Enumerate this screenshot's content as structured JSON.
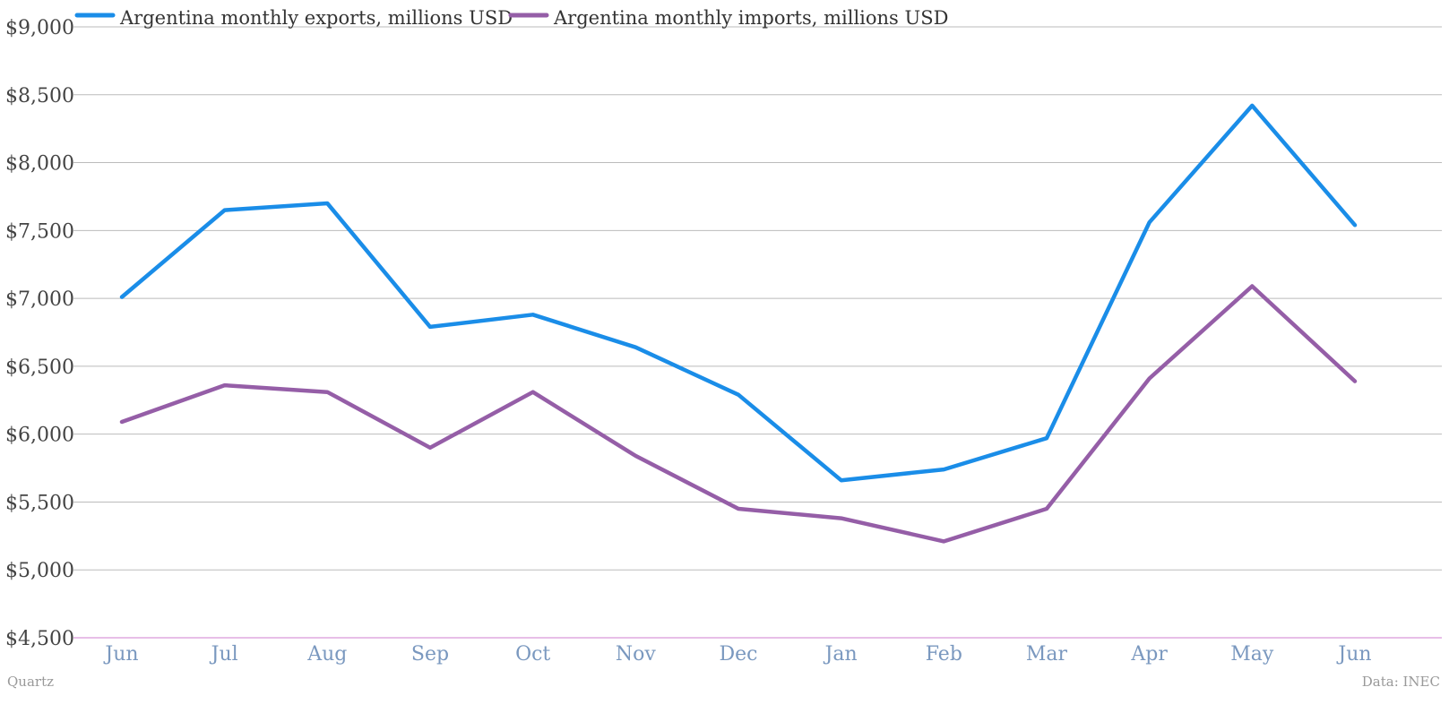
{
  "chart_data": {
    "type": "line",
    "categories": [
      "Jun",
      "Jul",
      "Aug",
      "Sep",
      "Oct",
      "Nov",
      "Dec",
      "Jan",
      "Feb",
      "Mar",
      "Apr",
      "May",
      "Jun"
    ],
    "series": [
      {
        "name": "Argentina monthly exports, millions USD",
        "color": "#1a8de8",
        "values": [
          7010,
          7650,
          7700,
          6790,
          6880,
          6640,
          6290,
          5660,
          5740,
          5970,
          7560,
          8420,
          7540
        ]
      },
      {
        "name": "Argentina monthly imports, millions USD",
        "color": "#955ea7",
        "values": [
          6090,
          6360,
          6310,
          5900,
          6310,
          5840,
          5450,
          5380,
          5210,
          5450,
          6410,
          7090,
          6390
        ]
      }
    ],
    "ylim": [
      4500,
      9000
    ],
    "yticks": [
      4500,
      5000,
      5500,
      6000,
      6500,
      7000,
      7500,
      8000,
      8500,
      9000
    ],
    "ytick_labels": [
      "$4,500",
      "$5,000",
      "$5,500",
      "$6,000",
      "$6,500",
      "$7,000",
      "$7,500",
      "$8,000",
      "$8,500",
      "$9,000"
    ],
    "grid": true,
    "legend_position": "top-left"
  },
  "footer": {
    "source_left": "Quartz",
    "source_right": "Data: INEC"
  }
}
